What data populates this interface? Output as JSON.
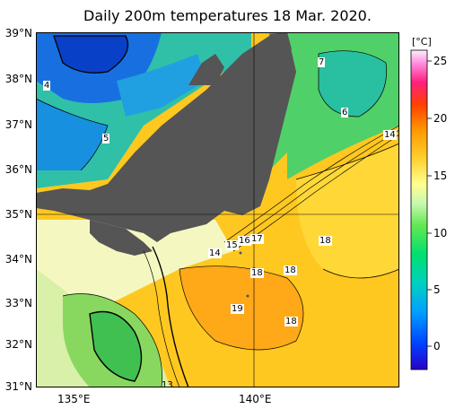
{
  "title": "Daily 200m temperatures 18 Mar. 2020.",
  "axes": {
    "lat_labels": [
      "39°N",
      "38°N",
      "37°N",
      "36°N",
      "35°N",
      "34°N",
      "33°N",
      "32°N",
      "31°N"
    ],
    "lon_labels": [
      "135°E",
      "140°E"
    ]
  },
  "colorbar": {
    "unit": "[°C]",
    "ticks": [
      "25",
      "20",
      "15",
      "10",
      "5",
      "0"
    ],
    "min": -2,
    "max": 26,
    "colors": [
      "#2a00c8",
      "#0050ff",
      "#00a0ff",
      "#00d0c8",
      "#00e080",
      "#40e040",
      "#a0f060",
      "#e8f8b0",
      "#ffff80",
      "#ffe040",
      "#ffc000",
      "#ff9000",
      "#ff5000",
      "#ff0030",
      "#ff40a0",
      "#ffa0e8",
      "#fff0ff"
    ]
  },
  "contour_labels": [
    "4",
    "5",
    "7",
    "6",
    "14",
    "15",
    "16",
    "17",
    "14",
    "18",
    "18",
    "18",
    "19",
    "18",
    "13"
  ],
  "colors": {
    "land": "#555555",
    "cold_blue": "#1060d8",
    "teal": "#20c8a8",
    "green": "#50d860",
    "light_green": "#c8f0b0",
    "warm_yellow": "#ffd030",
    "orange": "#ffb818"
  }
}
